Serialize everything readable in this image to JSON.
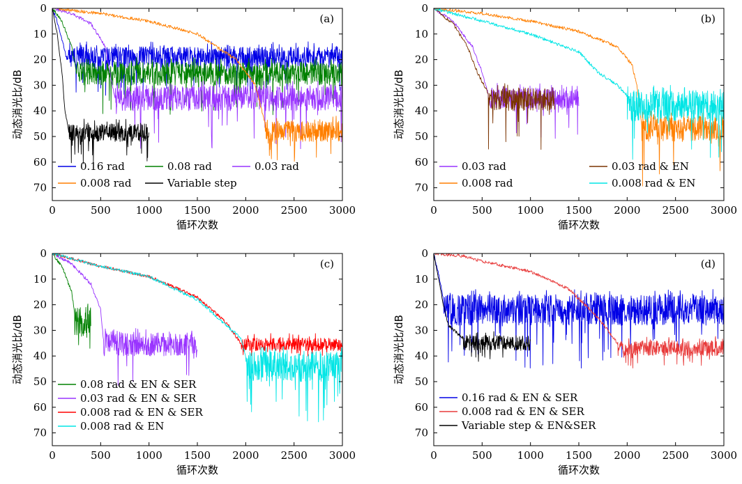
{
  "chart_data": [
    {
      "type": "line",
      "panel_label": "(a)",
      "xlabel": "循环次数",
      "ylabel": "动态消光比/dB",
      "xlim": [
        0,
        3000
      ],
      "ylim": [
        0,
        75
      ],
      "y_inverted": true,
      "xticks": [
        0,
        500,
        1000,
        1500,
        2000,
        2500,
        3000
      ],
      "yticks": [
        0,
        10,
        20,
        30,
        40,
        50,
        60,
        70
      ],
      "legend": {
        "placement": "bottom-left",
        "columns": 3
      },
      "series": [
        {
          "name": "0.16 rad",
          "color": "#0000e6",
          "descent": [
            [
              0,
              0
            ],
            [
              50,
              5
            ],
            [
              120,
              15
            ],
            [
              150,
              20
            ]
          ],
          "end": 3000,
          "plateau": [
            15,
            23
          ],
          "spike_to": 34,
          "style": "noisy"
        },
        {
          "name": "0.08 rad",
          "color": "#008000",
          "descent": [
            [
              0,
              0
            ],
            [
              100,
              5
            ],
            [
              200,
              15
            ],
            [
              250,
              25
            ]
          ],
          "end": 3000,
          "plateau": [
            21,
            30
          ],
          "spike_to": 42,
          "style": "noisy"
        },
        {
          "name": "0.03 rad",
          "color": "#9933ff",
          "descent": [
            [
              0,
              0
            ],
            [
              200,
              2
            ],
            [
              400,
              6
            ],
            [
              550,
              15
            ],
            [
              620,
              30
            ],
            [
              650,
              35
            ]
          ],
          "end": 3000,
          "plateau": [
            30,
            40
          ],
          "spike_to": 55,
          "style": "noisy"
        },
        {
          "name": "0.008 rad",
          "color": "#ff7f00",
          "descent": [
            [
              0,
              0
            ],
            [
              500,
              2
            ],
            [
              1000,
              5
            ],
            [
              1500,
              10
            ],
            [
              1900,
              20
            ],
            [
              2100,
              30
            ],
            [
              2200,
              45
            ]
          ],
          "end": 3000,
          "plateau": [
            44,
            52
          ],
          "spike_to": 60,
          "style": "noisy"
        },
        {
          "name": "Variable step",
          "color": "#000000",
          "descent": [
            [
              0,
              0
            ],
            [
              50,
              10
            ],
            [
              100,
              25
            ],
            [
              130,
              40
            ],
            [
              170,
              48
            ]
          ],
          "end": 1000,
          "plateau": [
            45,
            52
          ],
          "spike_to": 61,
          "style": "noisy"
        }
      ]
    },
    {
      "type": "line",
      "panel_label": "(b)",
      "xlabel": "循环次数",
      "ylabel": "动态消光比/dB",
      "xlim": [
        0,
        3000
      ],
      "ylim": [
        0,
        75
      ],
      "y_inverted": true,
      "xticks": [
        0,
        500,
        1000,
        1500,
        2000,
        2500,
        3000
      ],
      "yticks": [
        0,
        10,
        20,
        30,
        40,
        50,
        60,
        70
      ],
      "legend": {
        "placement": "bottom-left",
        "columns": 2
      },
      "series": [
        {
          "name": "0.03 rad",
          "color": "#9933ff",
          "descent": [
            [
              0,
              0
            ],
            [
              200,
              5
            ],
            [
              400,
              15
            ],
            [
              500,
              25
            ],
            [
              560,
              33
            ]
          ],
          "end": 1500,
          "plateau": [
            31,
            39
          ],
          "spike_to": 51,
          "style": "noisy"
        },
        {
          "name": "0.03 rad & EN",
          "color": "#7a3300",
          "descent": [
            [
              0,
              0
            ],
            [
              200,
              6
            ],
            [
              350,
              15
            ],
            [
              450,
              25
            ],
            [
              560,
              33
            ]
          ],
          "end": 1250,
          "plateau": [
            31,
            40
          ],
          "spike_to": 57,
          "style": "noisy"
        },
        {
          "name": "0.008 rad",
          "color": "#ff7f00",
          "descent": [
            [
              0,
              0
            ],
            [
              500,
              2
            ],
            [
              1000,
              5
            ],
            [
              1500,
              9
            ],
            [
              1900,
              15
            ],
            [
              2050,
              22
            ],
            [
              2100,
              30
            ],
            [
              2150,
              45
            ]
          ],
          "end": 3000,
          "plateau": [
            42,
            52
          ],
          "spike_to": 70,
          "style": "noisy"
        },
        {
          "name": "0.008 rad & EN",
          "color": "#00e5e5",
          "descent": [
            [
              0,
              0
            ],
            [
              500,
              5
            ],
            [
              1000,
              10
            ],
            [
              1500,
              17
            ],
            [
              1700,
              25
            ],
            [
              1900,
              30
            ],
            [
              2000,
              34
            ]
          ],
          "end": 3000,
          "plateau": [
            32,
            44
          ],
          "spike_to": 61,
          "style": "noisy"
        }
      ]
    },
    {
      "type": "line",
      "panel_label": "(c)",
      "xlabel": "循环次数",
      "ylabel": "动态消光比/dB",
      "xlim": [
        0,
        3000
      ],
      "ylim": [
        0,
        75
      ],
      "y_inverted": true,
      "xticks": [
        0,
        500,
        1000,
        1500,
        2000,
        2500,
        3000
      ],
      "yticks": [
        0,
        10,
        20,
        30,
        40,
        50,
        60,
        70
      ],
      "legend": {
        "placement": "bottom-left",
        "columns": 1
      },
      "series": [
        {
          "name": "0.08 rad & EN & SER",
          "color": "#008000",
          "descent": [
            [
              0,
              0
            ],
            [
              100,
              5
            ],
            [
              200,
              15
            ],
            [
              230,
              23
            ]
          ],
          "end": 400,
          "plateau": [
            21,
            33
          ],
          "spike_to": 37,
          "style": "noisy"
        },
        {
          "name": "0.03 rad & EN & SER",
          "color": "#9933ff",
          "descent": [
            [
              0,
              0
            ],
            [
              200,
              4
            ],
            [
              400,
              12
            ],
            [
              500,
              22
            ],
            [
              530,
              34
            ]
          ],
          "end": 1500,
          "plateau": [
            31,
            40
          ],
          "spike_to": 53,
          "style": "noisy"
        },
        {
          "name": "0.008 rad & EN & SER",
          "color": "#ff0000",
          "descent": [
            [
              0,
              0
            ],
            [
              500,
              5
            ],
            [
              1000,
              9
            ],
            [
              1500,
              17
            ],
            [
              1800,
              27
            ],
            [
              1950,
              35
            ]
          ],
          "end": 3000,
          "plateau": [
            33,
            38
          ],
          "spike_to": 40,
          "style": "noisy"
        },
        {
          "name": "0.008 rad & EN",
          "color": "#00e5e5",
          "descent": [
            [
              0,
              0
            ],
            [
              500,
              5
            ],
            [
              1000,
              9
            ],
            [
              1500,
              18
            ],
            [
              1800,
              28
            ],
            [
              1950,
              33
            ],
            [
              2000,
              40
            ]
          ],
          "end": 3000,
          "plateau": [
            38,
            50
          ],
          "spike_to": 66,
          "style": "noisy"
        }
      ]
    },
    {
      "type": "line",
      "panel_label": "(d)",
      "xlabel": "循环次数",
      "ylabel": "动态消光比/dB",
      "xlim": [
        0,
        3000
      ],
      "ylim": [
        0,
        75
      ],
      "y_inverted": true,
      "xticks": [
        0,
        500,
        1000,
        1500,
        2000,
        2500,
        3000
      ],
      "yticks": [
        0,
        10,
        20,
        30,
        40,
        50,
        60,
        70
      ],
      "legend": {
        "placement": "bottom-left",
        "columns": 1
      },
      "series": [
        {
          "name": "0.16 rad & EN & SER",
          "color": "#0000e6",
          "descent": [
            [
              0,
              0
            ],
            [
              50,
              8
            ],
            [
              100,
              18
            ]
          ],
          "end": 3000,
          "plateau": [
            16,
            28
          ],
          "spike_to": 45,
          "style": "noisy"
        },
        {
          "name": "0.008 rad & EN & SER",
          "color": "#e83a3a",
          "descent": [
            [
              0,
              0
            ],
            [
              300,
              1
            ],
            [
              500,
              3
            ],
            [
              1000,
              7
            ],
            [
              1400,
              14
            ],
            [
              1700,
              25
            ],
            [
              1900,
              35
            ]
          ],
          "end": 3000,
          "plateau": [
            34,
            40
          ],
          "spike_to": 45,
          "style": "noisy"
        },
        {
          "name": "Variable step & EN&SER",
          "color": "#000000",
          "descent": [
            [
              0,
              0
            ],
            [
              50,
              10
            ],
            [
              100,
              20
            ],
            [
              150,
              28
            ],
            [
              300,
              33
            ]
          ],
          "end": 1000,
          "plateau": [
            32,
            38
          ],
          "spike_to": 43,
          "style": "noisy"
        }
      ]
    }
  ]
}
